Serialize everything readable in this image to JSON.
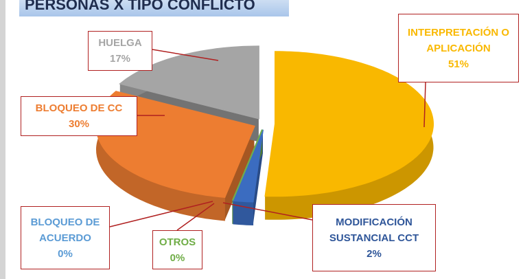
{
  "chart_data": {
    "type": "pie",
    "title": "PERSONAS X TIPO CONFLICTO",
    "categories": [
      "INTERPRETACIÓN O APLICACIÓN",
      "MODIFICACIÓN SUSTANCIAL CCT",
      "BLOQUEO DE ACUERDO",
      "OTROS",
      "BLOQUEO DE CC",
      "HUELGA"
    ],
    "values": [
      51,
      2,
      0,
      0,
      30,
      17
    ],
    "value_labels": [
      "51%",
      "2%",
      "0%",
      "0%",
      "30%",
      "17%"
    ],
    "colors": [
      "#f9b800",
      "#3b6cc0",
      "#5b9bd5",
      "#70ad47",
      "#ed7d31",
      "#a5a5a5"
    ]
  }
}
